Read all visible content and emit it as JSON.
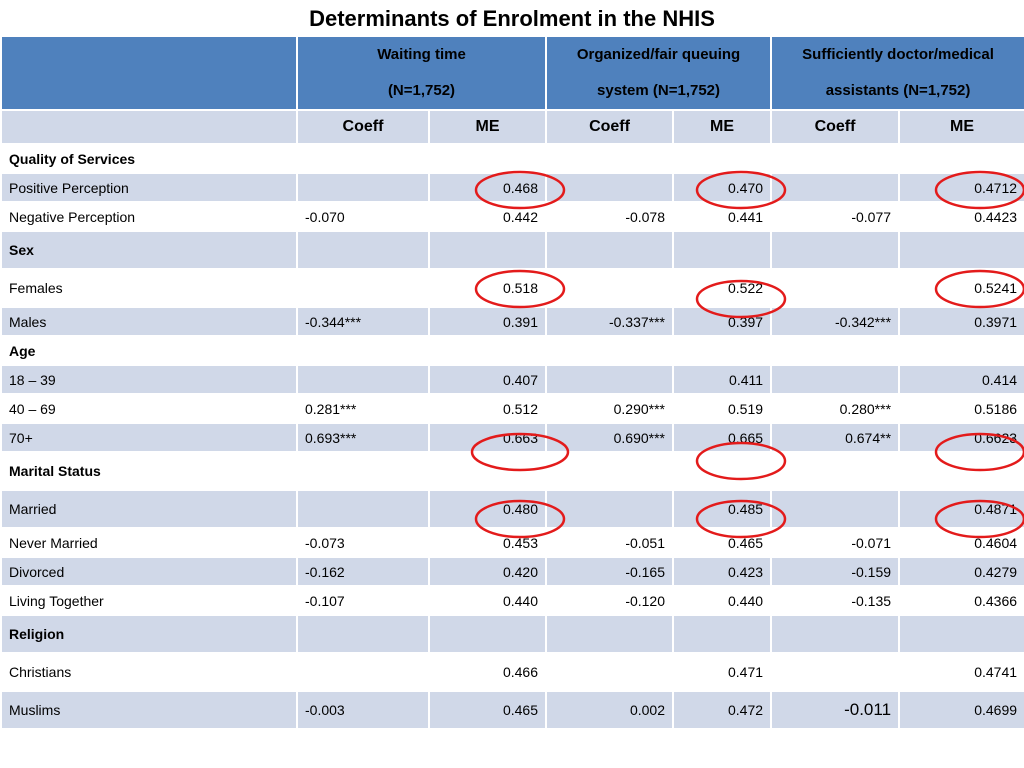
{
  "title": "Determinants of Enrolment in the NHIS",
  "header": {
    "groups": [
      {
        "line1": "Waiting time",
        "line2": "(N=1,752)"
      },
      {
        "line1": "Organized/fair queuing",
        "line2": "system (N=1,752)"
      },
      {
        "line1": "Sufficiently  doctor/medical",
        "line2": "assistants (N=1,752)"
      }
    ],
    "sub": [
      "Coeff",
      "ME",
      "Coeff",
      "ME",
      "Coeff",
      "ME"
    ]
  },
  "rows": [
    {
      "label": "Quality of Services",
      "section": true,
      "cells": [
        "",
        "",
        "",
        "",
        "",
        ""
      ]
    },
    {
      "label": "Positive Perception",
      "cells": [
        "",
        "0.468",
        "",
        "0.470",
        "",
        "0.4712"
      ]
    },
    {
      "label": "Negative Perception",
      "cells": [
        "-0.070",
        "0.442",
        "-0.078",
        "0.441",
        "-0.077",
        "0.4423"
      ]
    },
    {
      "label": "Sex",
      "section": true,
      "cells": [
        "",
        "",
        "",
        "",
        "",
        ""
      ]
    },
    {
      "label": "Females",
      "cells": [
        "",
        "0.518",
        "",
        "0.522",
        "",
        "0.5241"
      ]
    },
    {
      "label": "Males",
      "cells": [
        "-0.344***",
        "0.391",
        "-0.337***",
        "0.397",
        "-0.342***",
        "0.3971"
      ]
    },
    {
      "label": "Age",
      "section": true,
      "cells": [
        "",
        "",
        "",
        "",
        "",
        ""
      ]
    },
    {
      "label": "18 – 39",
      "cells": [
        "",
        "0.407",
        "",
        "0.411",
        "",
        "0.414"
      ]
    },
    {
      "label": "40 – 69",
      "cells": [
        "0.281***",
        "0.512",
        "0.290***",
        "0.519",
        "0.280***",
        "0.5186"
      ]
    },
    {
      "label": "70+",
      "cells": [
        "0.693***",
        "0.663",
        "0.690***",
        "0.665",
        "0.674**",
        "0.6623"
      ]
    },
    {
      "label": "Marital Status",
      "section": true,
      "cells": [
        "",
        "",
        "",
        "",
        "",
        ""
      ]
    },
    {
      "label": "Married",
      "cells": [
        "",
        "0.480",
        "",
        "0.485",
        "",
        "0.4871"
      ]
    },
    {
      "label": "Never Married",
      "cells": [
        "-0.073",
        "0.453",
        "-0.051",
        "0.465",
        "-0.071",
        "0.4604"
      ]
    },
    {
      "label": "Divorced",
      "cells": [
        "-0.162",
        "0.420",
        "-0.165",
        "0.423",
        "-0.159",
        "0.4279"
      ]
    },
    {
      "label": "Living Together",
      "cells": [
        "-0.107",
        "0.440",
        "-0.120",
        "0.440",
        "-0.135",
        "0.4366"
      ]
    },
    {
      "label": "Religion",
      "section": true,
      "cells": [
        "",
        "",
        "",
        "",
        "",
        ""
      ]
    },
    {
      "label": "Christians",
      "cells": [
        "",
        "0.466",
        "",
        "0.471",
        "",
        "0.4741"
      ]
    },
    {
      "label": "Muslims",
      "cells": [
        "-0.003",
        "0.465",
        "0.002",
        "0.472",
        "-0.011",
        "0.4699"
      ]
    }
  ],
  "annotations": {
    "circle_color": "#e31b1b"
  },
  "colors": {
    "header_blue": "#4f81bd",
    "band_light": "#d0d8e8"
  }
}
